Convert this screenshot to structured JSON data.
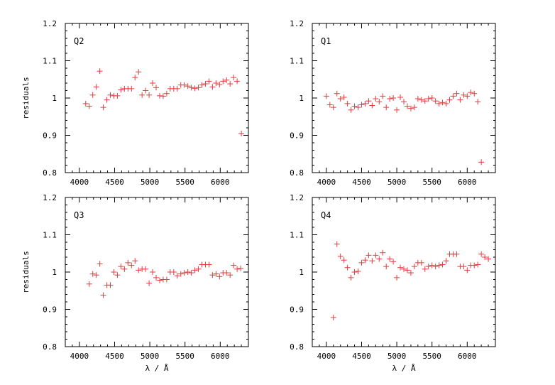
{
  "chart_data": [
    {
      "type": "scatter",
      "title": "Q2",
      "xlabel": "",
      "ylabel": "residuals",
      "xlim": [
        3800,
        6400
      ],
      "ylim": [
        0.8,
        1.2
      ],
      "xticks": [
        4000,
        4500,
        5000,
        5500,
        6000
      ],
      "yticks": [
        0.8,
        0.9,
        1,
        1.1,
        1.2
      ],
      "xtick_labels": [
        "4000",
        "4500",
        "5000",
        "5500",
        "6000"
      ],
      "ytick_labels": [
        "0.8",
        "0.9",
        "1",
        "1.1",
        "1.2"
      ],
      "marker": "+",
      "color": "#e8393c",
      "series": [
        {
          "x": [
            4090,
            4140,
            4190,
            4240,
            4290,
            4340,
            4390,
            4440,
            4490,
            4540,
            4590,
            4640,
            4690,
            4740,
            4790,
            4840,
            4890,
            4940,
            4990,
            5040,
            5090,
            5140,
            5190,
            5240,
            5290,
            5340,
            5390,
            5440,
            5490,
            5540,
            5590,
            5640,
            5690,
            5740,
            5790,
            5840,
            5890,
            5940,
            5990,
            6040,
            6090,
            6140,
            6190,
            6240,
            6300
          ],
          "y": [
            0.985,
            0.978,
            1.008,
            1.03,
            1.072,
            0.975,
            0.995,
            1.008,
            1.006,
            1.006,
            1.022,
            1.025,
            1.025,
            1.025,
            1.055,
            1.07,
            1.008,
            1.02,
            1.008,
            1.04,
            1.028,
            1.006,
            1.005,
            1.012,
            1.025,
            1.025,
            1.025,
            1.035,
            1.035,
            1.032,
            1.028,
            1.026,
            1.028,
            1.035,
            1.038,
            1.045,
            1.03,
            1.04,
            1.036,
            1.045,
            1.048,
            1.038,
            1.055,
            1.045,
            0.905
          ]
        }
      ]
    },
    {
      "type": "scatter",
      "title": "Q1",
      "xlabel": "",
      "ylabel": "",
      "xlim": [
        3800,
        6400
      ],
      "ylim": [
        0.8,
        1.2
      ],
      "xticks": [
        4000,
        4500,
        5000,
        5500,
        6000
      ],
      "yticks": [
        0.8,
        0.9,
        1,
        1.1,
        1.2
      ],
      "xtick_labels": [
        "4000",
        "4500",
        "5000",
        "5500",
        "6000"
      ],
      "ytick_labels": [
        "0.8",
        "0.9",
        "1",
        "1.1",
        "1.2"
      ],
      "marker": "+",
      "color": "#e8393c",
      "series": [
        {
          "x": [
            4000,
            4050,
            4100,
            4150,
            4200,
            4250,
            4300,
            4350,
            4400,
            4450,
            4500,
            4550,
            4600,
            4650,
            4700,
            4750,
            4800,
            4850,
            4900,
            4950,
            5000,
            5050,
            5100,
            5150,
            5200,
            5250,
            5300,
            5350,
            5400,
            5450,
            5500,
            5550,
            5600,
            5650,
            5700,
            5750,
            5800,
            5850,
            5900,
            5950,
            6000,
            6050,
            6100,
            6150,
            6200
          ],
          "y": [
            1.005,
            0.982,
            0.975,
            1.012,
            0.998,
            1.002,
            0.985,
            0.968,
            0.978,
            0.975,
            0.982,
            0.985,
            0.992,
            0.98,
            0.998,
            0.99,
            1.005,
            0.975,
            0.998,
            1.0,
            0.968,
            1.002,
            0.99,
            0.978,
            0.972,
            0.975,
            0.998,
            0.995,
            0.992,
            0.998,
            1.0,
            0.992,
            0.985,
            0.988,
            0.985,
            0.995,
            1.005,
            1.012,
            0.995,
            1.008,
            1.005,
            1.015,
            1.012,
            0.99,
            0.828
          ]
        }
      ]
    },
    {
      "type": "scatter",
      "title": "Q3",
      "xlabel": "λ / Å",
      "ylabel": "residuals",
      "xlim": [
        3800,
        6400
      ],
      "ylim": [
        0.8,
        1.2
      ],
      "xticks": [
        4000,
        4500,
        5000,
        5500,
        6000
      ],
      "yticks": [
        0.8,
        0.9,
        1,
        1.1,
        1.2
      ],
      "xtick_labels": [
        "4000",
        "4500",
        "5000",
        "5500",
        "6000"
      ],
      "ytick_labels": [
        "0.8",
        "0.9",
        "1",
        "1.1",
        "1.2"
      ],
      "marker": "+",
      "color": "#e8393c",
      "series": [
        {
          "x": [
            4140,
            4190,
            4240,
            4290,
            4340,
            4390,
            4440,
            4490,
            4540,
            4590,
            4640,
            4690,
            4740,
            4790,
            4840,
            4890,
            4940,
            4990,
            5040,
            5090,
            5140,
            5190,
            5240,
            5290,
            5340,
            5390,
            5440,
            5490,
            5540,
            5590,
            5640,
            5690,
            5740,
            5790,
            5840,
            5890,
            5940,
            5990,
            6040,
            6090,
            6140,
            6190,
            6240,
            6290
          ],
          "y": [
            0.968,
            0.995,
            0.992,
            1.022,
            0.938,
            0.965,
            0.965,
            1.0,
            0.992,
            1.015,
            1.008,
            1.025,
            1.018,
            1.03,
            1.005,
            1.008,
            1.008,
            0.97,
            1.0,
            0.985,
            0.978,
            0.98,
            0.98,
            1.0,
            1.0,
            0.99,
            0.995,
            0.998,
            1.0,
            0.998,
            1.005,
            1.008,
            1.02,
            1.02,
            1.02,
            0.992,
            0.995,
            0.988,
            0.998,
            0.998,
            0.992,
            1.018,
            1.008,
            1.01
          ]
        }
      ]
    },
    {
      "type": "scatter",
      "title": "Q4",
      "xlabel": "λ / Å",
      "ylabel": "",
      "xlim": [
        3800,
        6400
      ],
      "ylim": [
        0.8,
        1.2
      ],
      "xticks": [
        4000,
        4500,
        5000,
        5500,
        6000
      ],
      "yticks": [
        0.8,
        0.9,
        1,
        1.1,
        1.2
      ],
      "xtick_labels": [
        "4000",
        "4500",
        "5000",
        "5500",
        "6000"
      ],
      "ytick_labels": [
        "0.8",
        "0.9",
        "1",
        "1.1",
        "1.2"
      ],
      "marker": "+",
      "color": "#e8393c",
      "series": [
        {
          "x": [
            4100,
            4150,
            4200,
            4250,
            4300,
            4350,
            4400,
            4450,
            4500,
            4550,
            4600,
            4650,
            4700,
            4750,
            4800,
            4850,
            4900,
            4950,
            5000,
            5050,
            5100,
            5150,
            5200,
            5250,
            5300,
            5350,
            5400,
            5450,
            5500,
            5550,
            5600,
            5650,
            5700,
            5750,
            5800,
            5850,
            5900,
            5950,
            6000,
            6050,
            6100,
            6150,
            6200,
            6250,
            6300
          ],
          "y": [
            0.878,
            1.075,
            1.042,
            1.032,
            1.012,
            0.985,
            1.0,
            1.002,
            1.025,
            1.032,
            1.045,
            1.03,
            1.045,
            1.035,
            1.052,
            1.015,
            1.035,
            1.028,
            0.985,
            1.012,
            1.008,
            1.005,
            0.998,
            1.015,
            1.025,
            1.025,
            1.008,
            1.015,
            1.018,
            1.015,
            1.018,
            1.02,
            1.03,
            1.048,
            1.048,
            1.048,
            1.015,
            1.015,
            1.005,
            1.018,
            1.018,
            1.02,
            1.048,
            1.04,
            1.035
          ]
        }
      ]
    }
  ]
}
